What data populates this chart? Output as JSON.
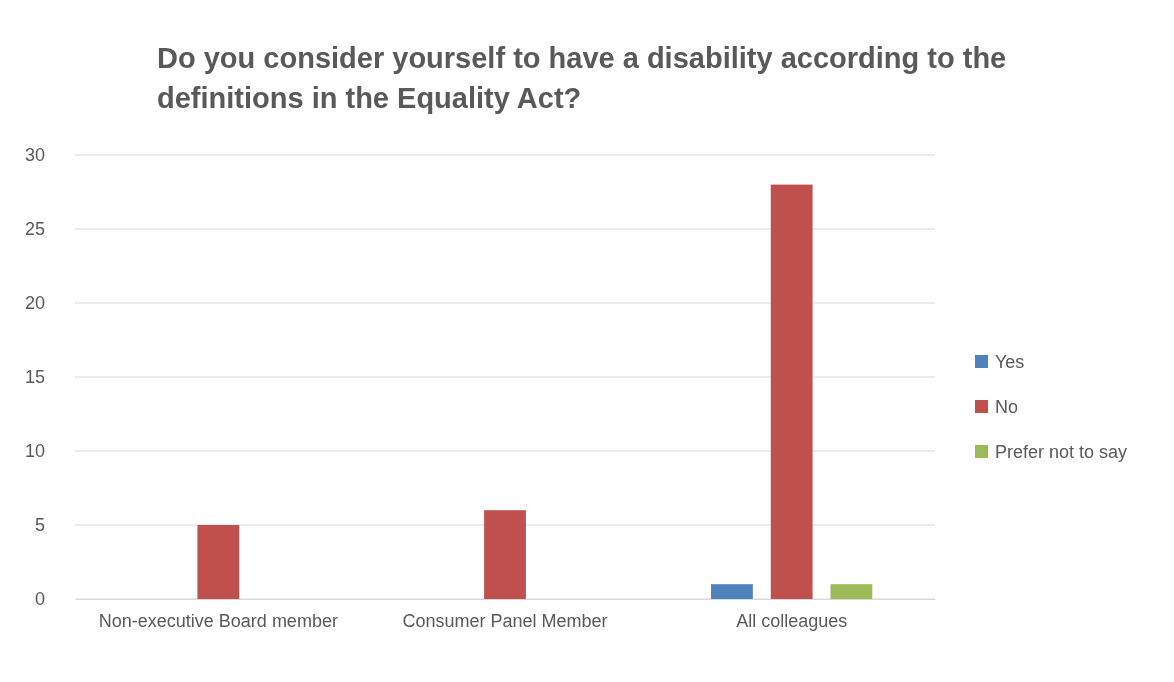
{
  "chart_data": {
    "type": "bar",
    "title": "Do you consider yourself to have a disability according to the definitions in the Equality Act?",
    "categories": [
      "Non-executive Board member",
      "Consumer Panel Member",
      "All colleagues"
    ],
    "series": [
      {
        "name": "Yes",
        "color": "#4f81bd",
        "values": [
          0,
          0,
          1
        ]
      },
      {
        "name": "No",
        "color": "#c0504d",
        "values": [
          5,
          6,
          28
        ]
      },
      {
        "name": "Prefer not to say",
        "color": "#9bbb59",
        "values": [
          0,
          0,
          1
        ]
      }
    ],
    "ylim": [
      0,
      30
    ],
    "yticks": [
      0,
      5,
      10,
      15,
      20,
      25,
      30
    ],
    "grid": "y",
    "legend": "right"
  }
}
